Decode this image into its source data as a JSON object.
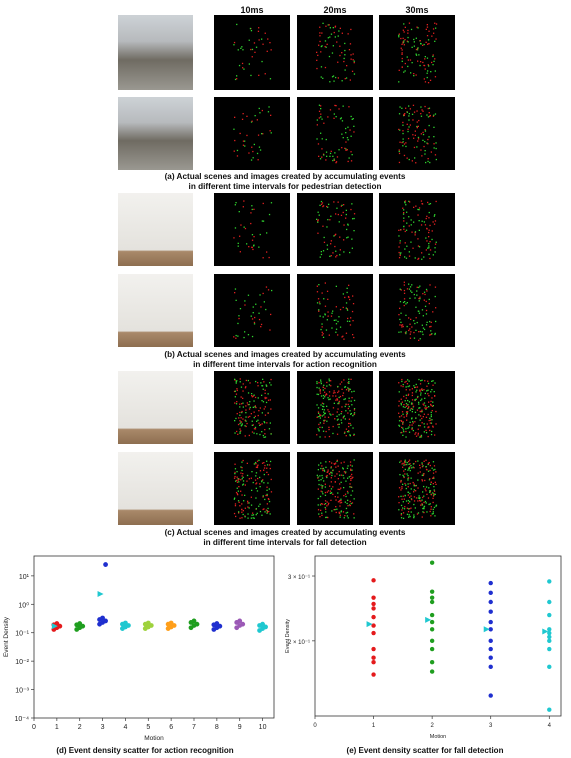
{
  "column_headers": [
    "10ms",
    "20ms",
    "30ms"
  ],
  "captions": {
    "a_line1": "(a) Actual scenes and images created by accumulating events",
    "a_line2": "in different time intervals for pedestrian detection",
    "b_line1": "(b) Actual scenes and images created by accumulating events",
    "b_line2": "in different time intervals for action recognition",
    "c_line1": "(c) Actual scenes and images created by accumulating events",
    "c_line2": "in different time intervals for fall detection",
    "d": "(d) Event density scatter for action recognition",
    "e": "(e) Event density scatter for fall detection"
  },
  "colors": {
    "red": "#e41a1c",
    "green": "#1f9e1f",
    "blue": "#1f2fcf",
    "cyan": "#1fc8d0",
    "orange": "#ff9f1a",
    "purple": "#9b59b6",
    "lightgreen": "#9ed23d"
  },
  "chart_data": [
    {
      "type": "scatter",
      "xlabel": "Motion",
      "ylabel": "Event Density",
      "yscale": "log",
      "xlim": [
        0,
        10.5
      ],
      "ylim": [
        0.0001,
        50
      ],
      "x_ticks": [
        "0",
        "1",
        "2",
        "3",
        "4",
        "5",
        "6",
        "7",
        "8",
        "9",
        "10"
      ],
      "y_ticks": [
        "10⁻⁴",
        "10⁻³",
        "10⁻²",
        "10⁻¹",
        "10⁰",
        "10¹"
      ],
      "series": [
        {
          "x": 1,
          "color": "#e41a1c",
          "values": [
            0.13,
            0.15,
            0.17,
            0.19,
            0.21
          ]
        },
        {
          "x": 2,
          "color": "#1f9e1f",
          "values": [
            0.13,
            0.15,
            0.17,
            0.19,
            0.21
          ]
        },
        {
          "x": 3,
          "color": "#1f2fcf",
          "values": [
            0.2,
            0.23,
            0.26,
            0.29,
            0.33,
            25
          ]
        },
        {
          "x": 4,
          "color": "#1fc8d0",
          "values": [
            0.14,
            0.16,
            0.18,
            0.2,
            0.22
          ]
        },
        {
          "x": 5,
          "color": "#9ed23d",
          "values": [
            0.14,
            0.16,
            0.18,
            0.2,
            0.22
          ]
        },
        {
          "x": 6,
          "color": "#ff9f1a",
          "values": [
            0.14,
            0.16,
            0.18,
            0.2,
            0.22
          ]
        },
        {
          "x": 7,
          "color": "#1f9e1f",
          "values": [
            0.15,
            0.18,
            0.2,
            0.23,
            0.26
          ]
        },
        {
          "x": 8,
          "color": "#1f2fcf",
          "values": [
            0.13,
            0.15,
            0.17,
            0.19,
            0.21
          ]
        },
        {
          "x": 9,
          "color": "#9b59b6",
          "values": [
            0.15,
            0.18,
            0.2,
            0.23,
            0.26
          ]
        },
        {
          "x": 10,
          "color": "#1fc8d0",
          "values": [
            0.12,
            0.14,
            0.16,
            0.18,
            0.2
          ]
        }
      ],
      "means": [
        {
          "x": 1,
          "value": 0.17,
          "color": "#1fc8d0"
        },
        {
          "x": 3,
          "value": 2.3,
          "color": "#1fc8d0"
        }
      ]
    },
    {
      "type": "scatter",
      "xlabel": "Motion",
      "ylabel": "Event Density",
      "yscale": "log",
      "xlim": [
        0,
        4.2
      ],
      "ylim": [
        0.125,
        0.34
      ],
      "x_ticks": [
        "0",
        "1",
        "2",
        "3",
        "4"
      ],
      "y_ticks": [
        {
          "value": 0.3,
          "label": "3 × 10⁻¹"
        },
        {
          "value": 0.2,
          "label": "2 × 10⁻¹"
        }
      ],
      "series": [
        {
          "x": 1,
          "color": "#e41a1c",
          "values": [
            0.162,
            0.175,
            0.18,
            0.19,
            0.21,
            0.22,
            0.232,
            0.245,
            0.252,
            0.262,
            0.292
          ]
        },
        {
          "x": 2,
          "color": "#1f9e1f",
          "values": [
            0.165,
            0.175,
            0.19,
            0.2,
            0.215,
            0.225,
            0.235,
            0.255,
            0.262,
            0.272,
            0.326
          ]
        },
        {
          "x": 3,
          "color": "#1f2fcf",
          "values": [
            0.142,
            0.17,
            0.18,
            0.19,
            0.2,
            0.215,
            0.225,
            0.24,
            0.255,
            0.27,
            0.287
          ]
        },
        {
          "x": 4,
          "color": "#1fc8d0",
          "values": [
            0.13,
            0.17,
            0.19,
            0.2,
            0.205,
            0.21,
            0.215,
            0.235,
            0.255,
            0.29
          ]
        }
      ],
      "means": [
        {
          "x": 1,
          "value": 0.222,
          "color": "#1fc8d0"
        },
        {
          "x": 2,
          "value": 0.228,
          "color": "#1fc8d0"
        },
        {
          "x": 3,
          "value": 0.215,
          "color": "#1fc8d0"
        },
        {
          "x": 4,
          "value": 0.212,
          "color": "#1fc8d0"
        }
      ]
    }
  ]
}
